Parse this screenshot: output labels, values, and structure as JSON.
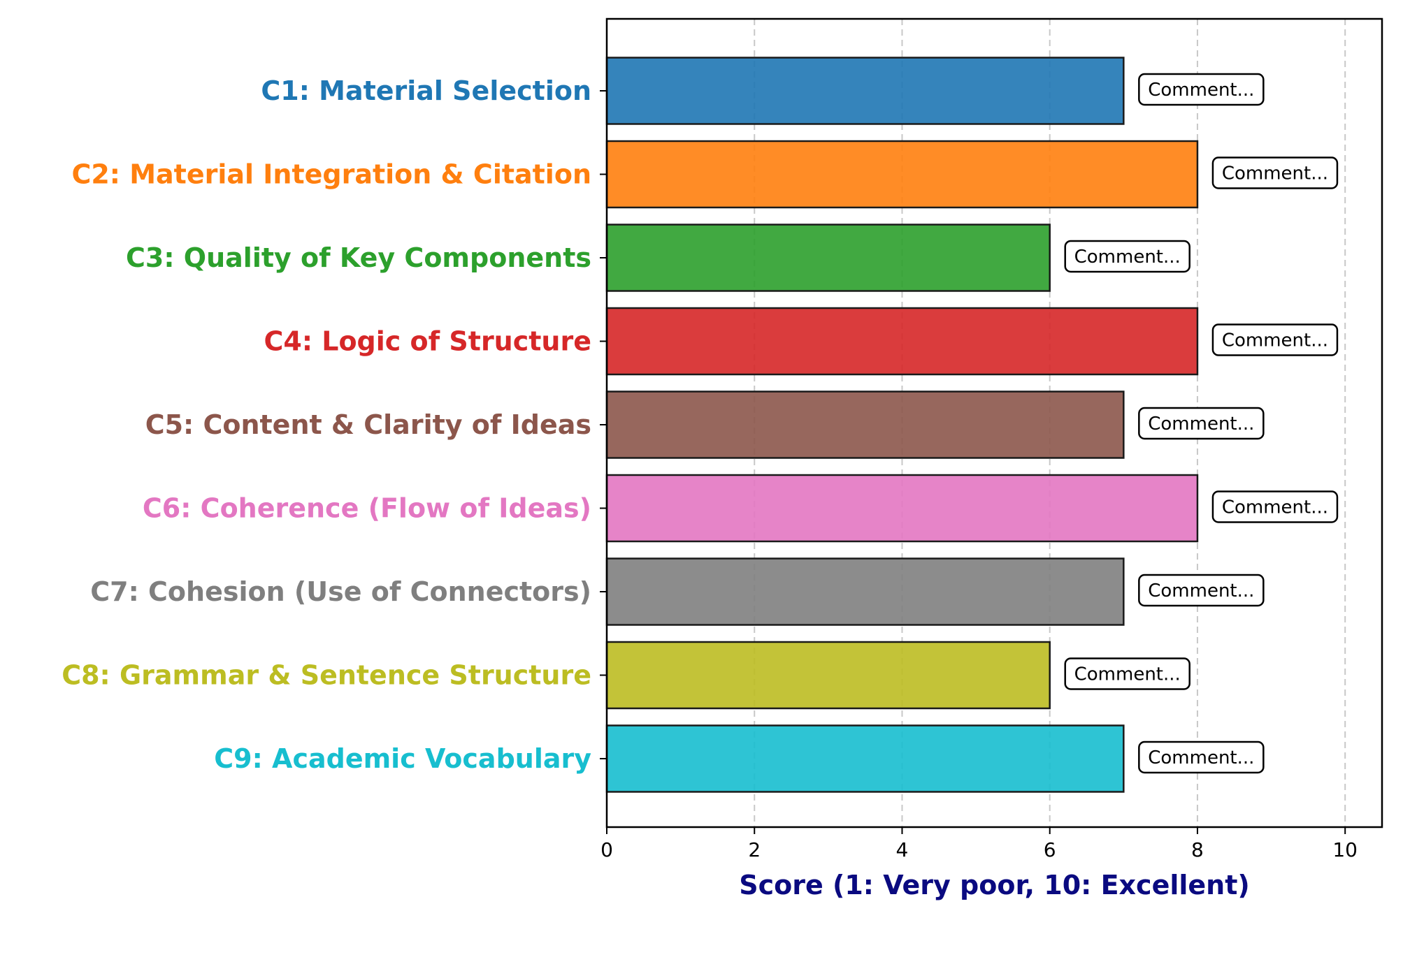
{
  "chart_data": {
    "type": "bar",
    "orientation": "horizontal",
    "title": "",
    "xlabel": "Score (1: Very poor, 10: Excellent)",
    "ylabel": "",
    "xlim": [
      0,
      10.5
    ],
    "xticks": [
      0,
      2,
      4,
      6,
      8,
      10
    ],
    "grid": "x-dashed",
    "categories": [
      "C1: Material Selection",
      "C2: Material Integration & Citation",
      "C3: Quality of Key Components",
      "C4: Logic of Structure",
      "C5: Content & Clarity of Ideas",
      "C6: Coherence (Flow of Ideas)",
      "C7: Cohesion (Use of Connectors)",
      "C8: Grammar & Sentence Structure",
      "C9: Academic Vocabulary"
    ],
    "values": [
      7,
      8,
      6,
      8,
      7,
      8,
      7,
      6,
      7
    ],
    "colors": [
      "#1f77b4",
      "#ff7f0e",
      "#2ca02c",
      "#d62728",
      "#8c564b",
      "#e377c2",
      "#7f7f7f",
      "#bcbd22",
      "#17becf"
    ],
    "annotations": [
      "Comment...",
      "Comment...",
      "Comment...",
      "Comment...",
      "Comment...",
      "Comment...",
      "Comment...",
      "Comment...",
      "Comment..."
    ],
    "label_color": "#0a0a80"
  }
}
